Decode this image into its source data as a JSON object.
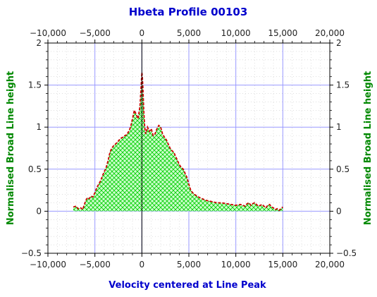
{
  "chart_data": {
    "type": "area",
    "title": "Hbeta Profile 00103",
    "xlabel": "Velocity centered at Line Peak",
    "ylabel_left": "Normalised Broad Line height",
    "ylabel_right": "Normalised Broad Line height",
    "xlim": [
      -10000,
      20000
    ],
    "ylim": [
      -0.5,
      2
    ],
    "x_ticks": [
      -10000,
      -5000,
      0,
      5000,
      10000,
      15000,
      20000
    ],
    "x_tick_labels": [
      "−10,000",
      "−5,000",
      "0",
      "5,000",
      "10,000",
      "15,000",
      "20,000"
    ],
    "y_ticks": [
      -0.5,
      0,
      0.5,
      1,
      1.5,
      2
    ],
    "y_tick_labels": [
      "−0.5",
      "0",
      "0.5",
      "1",
      "1.5",
      "2"
    ],
    "grid": true,
    "colors": {
      "line": "#cc0000",
      "fill_hatch": "#00cc00",
      "fill_bg": "#ccffcc",
      "major_grid": "#9999ff",
      "minor_grid": "#cccccc",
      "zero_line": "#000000",
      "title": "#0000cc",
      "ylabel": "#008800"
    },
    "series": [
      {
        "x": [
          -7300,
          -7000,
          -6800,
          -6500,
          -6300,
          -6000,
          -5800,
          -5600,
          -5400,
          -5200,
          -5000,
          -4800,
          -4600,
          -4400,
          -4200,
          -4000,
          -3800,
          -3600,
          -3400,
          -3200,
          -3000,
          -2800,
          -2600,
          -2400,
          -2200,
          -2000,
          -1800,
          -1600,
          -1400,
          -1200,
          -1000,
          -800,
          -600,
          -400,
          -200,
          -100,
          0,
          50,
          100,
          200,
          300,
          400,
          600,
          800,
          1000,
          1200,
          1400,
          1600,
          1800,
          2000,
          2200,
          2400,
          2600,
          2800,
          3000,
          3200,
          3400,
          3600,
          3800,
          4000,
          4200,
          4400,
          4600,
          4800,
          5000,
          5200,
          5400,
          5600,
          6000,
          6400,
          6800,
          7200,
          7600,
          8000,
          8500,
          9000,
          9500,
          10000,
          10500,
          11000,
          11200,
          11400,
          11600,
          11800,
          12000,
          12200,
          12400,
          12600,
          12800,
          13000,
          13200,
          13400,
          13600,
          13800,
          14000,
          14200,
          14400,
          14600,
          14800,
          15000
        ],
        "y": [
          0.05,
          0.06,
          0.03,
          0.04,
          0.02,
          0.12,
          0.16,
          0.15,
          0.18,
          0.17,
          0.22,
          0.28,
          0.32,
          0.36,
          0.42,
          0.47,
          0.52,
          0.6,
          0.7,
          0.75,
          0.78,
          0.8,
          0.82,
          0.85,
          0.87,
          0.88,
          0.9,
          0.91,
          0.95,
          1.0,
          1.1,
          1.2,
          1.15,
          1.1,
          1.25,
          1.45,
          1.65,
          1.6,
          1.5,
          1.2,
          1.0,
          0.92,
          1.0,
          0.95,
          0.98,
          0.9,
          0.92,
          0.98,
          1.02,
          1.0,
          0.92,
          0.88,
          0.85,
          0.8,
          0.75,
          0.72,
          0.7,
          0.65,
          0.6,
          0.55,
          0.52,
          0.5,
          0.45,
          0.4,
          0.32,
          0.25,
          0.22,
          0.2,
          0.17,
          0.15,
          0.13,
          0.12,
          0.11,
          0.1,
          0.1,
          0.09,
          0.08,
          0.07,
          0.08,
          0.06,
          0.09,
          0.1,
          0.07,
          0.09,
          0.1,
          0.08,
          0.06,
          0.07,
          0.08,
          0.06,
          0.04,
          0.07,
          0.08,
          0.05,
          0.04,
          0.02,
          0.03,
          0.01,
          0.03,
          0.05
        ]
      }
    ]
  }
}
